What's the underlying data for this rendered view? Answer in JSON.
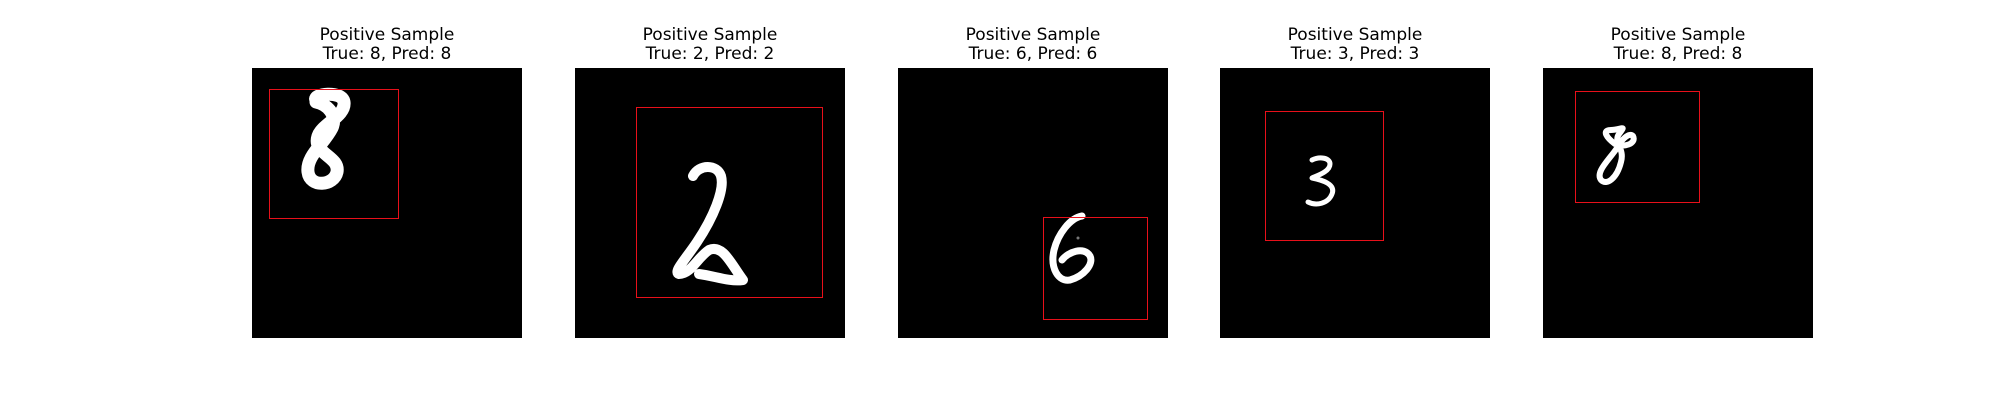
{
  "figure": {
    "colors": {
      "background": "#ffffff",
      "image_bg": "#000000",
      "box": "#e8101a",
      "digit": "#ffffff"
    },
    "samples": [
      {
        "line1": "Positive Sample",
        "line2": "True: 8, Pred: 8",
        "digit": "8"
      },
      {
        "line1": "Positive Sample",
        "line2": "True: 2, Pred: 2",
        "digit": "2"
      },
      {
        "line1": "Positive Sample",
        "line2": "True: 6, Pred: 6",
        "digit": "6"
      },
      {
        "line1": "Positive Sample",
        "line2": "True: 3, Pred: 3",
        "digit": "3"
      },
      {
        "line1": "Positive Sample",
        "line2": "True: 8, Pred: 8",
        "digit": "8"
      }
    ]
  }
}
